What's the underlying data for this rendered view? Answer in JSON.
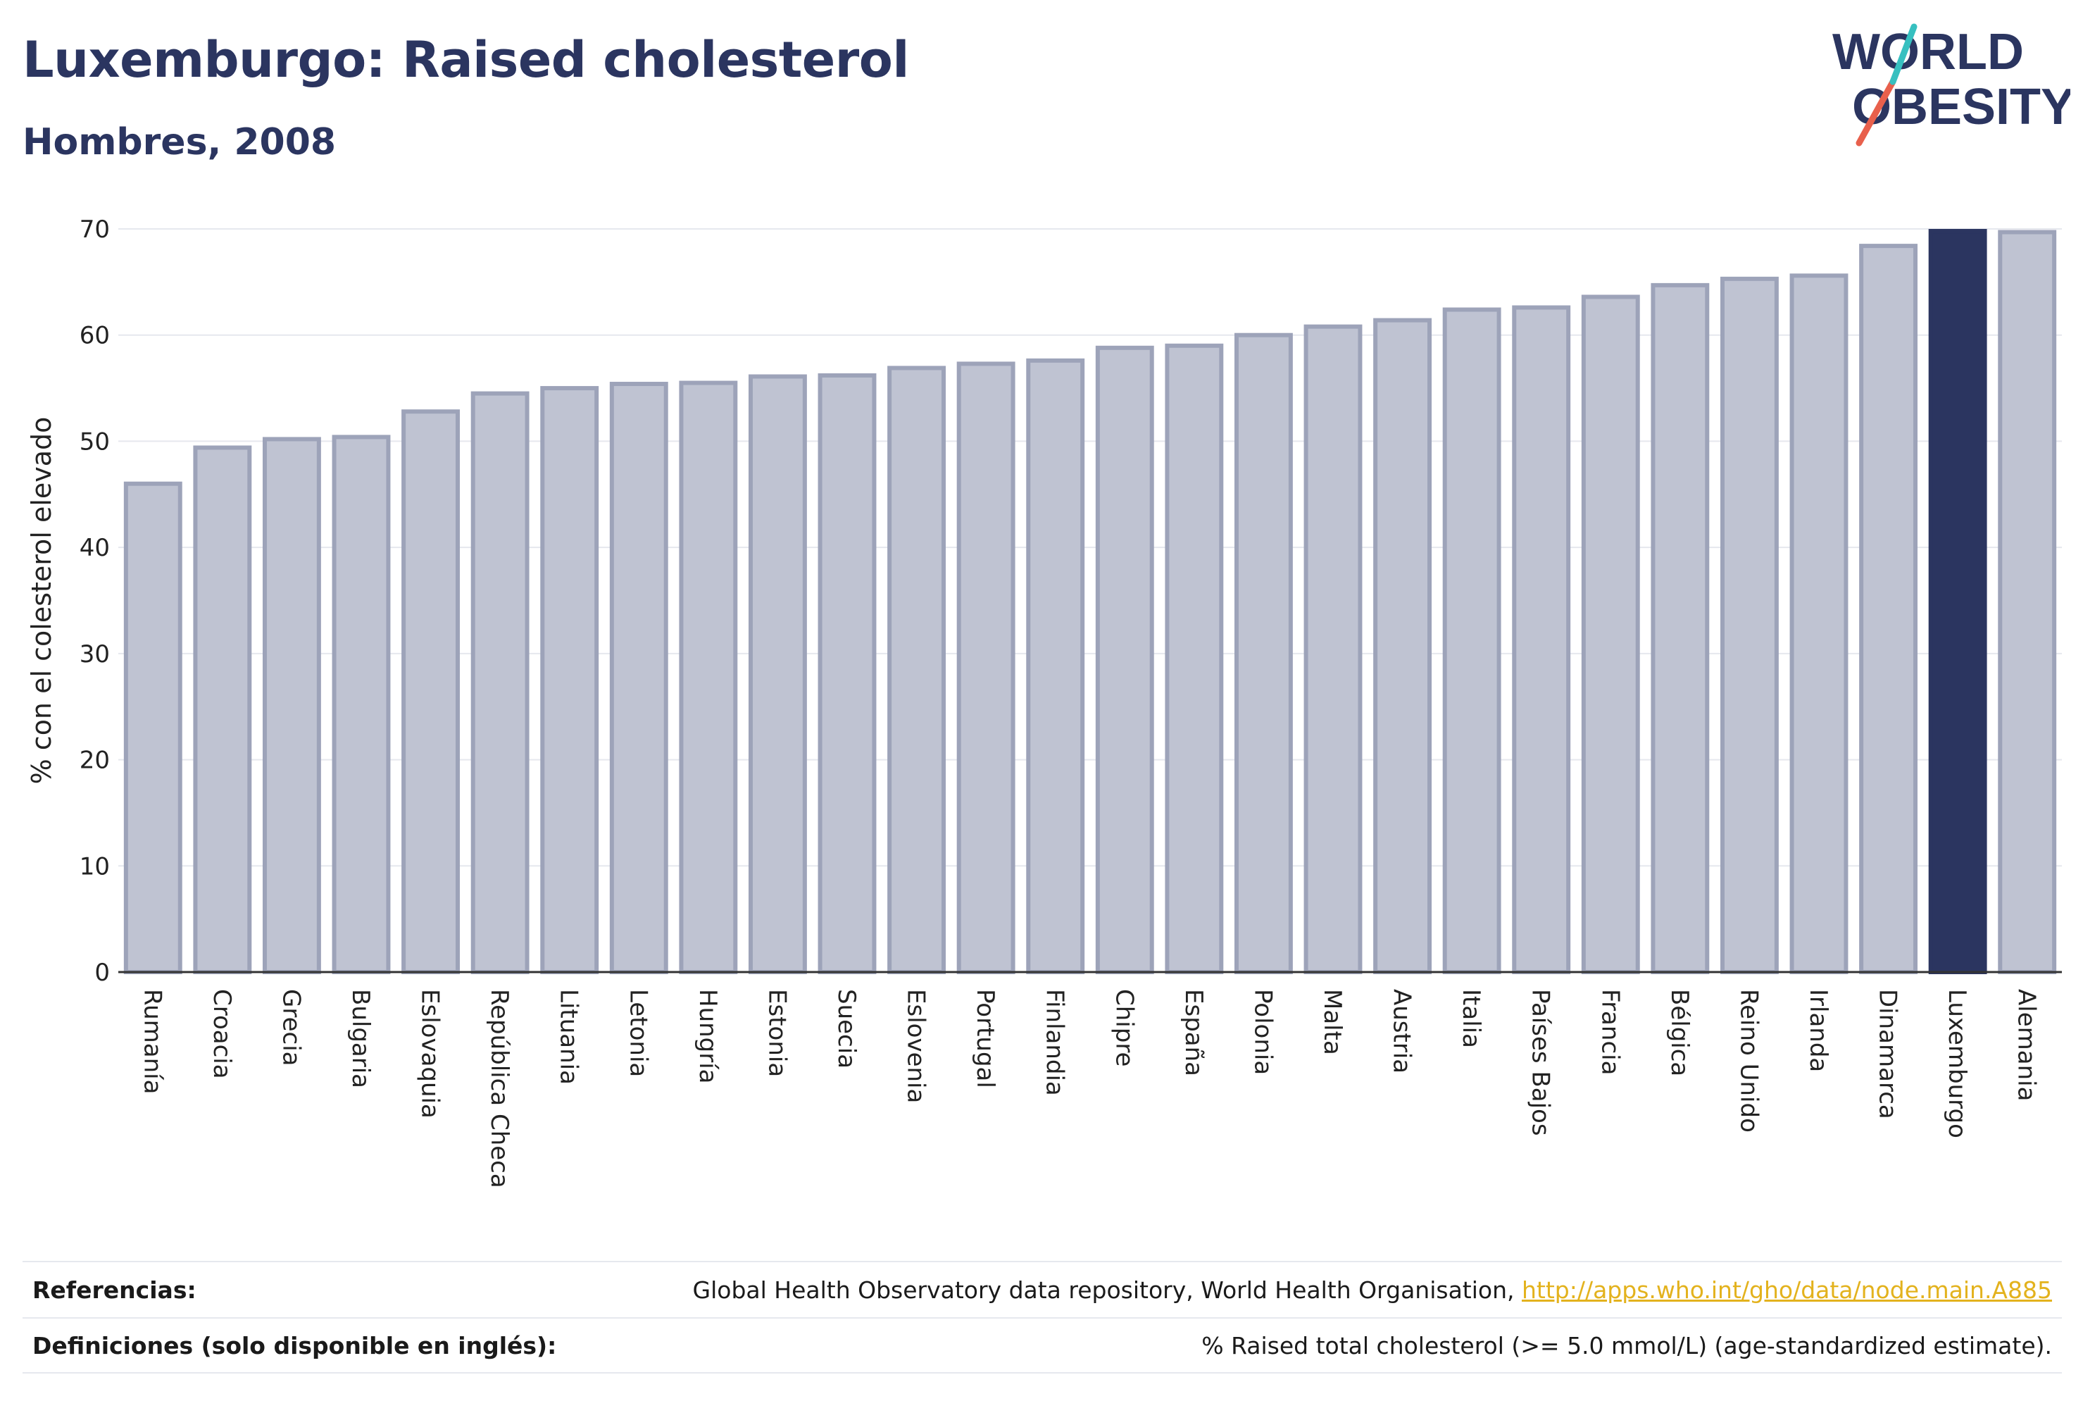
{
  "title": "Luxemburgo: Raised cholesterol",
  "subtitle": "Hombres, 2008",
  "logo": {
    "line1": "WORLD",
    "line2": "OBESITY",
    "accent_color": "#e8604c",
    "accent_color2": "#37c0c0"
  },
  "colors": {
    "bar": "#bfc3d2",
    "bar_stroke": "#9da3b9",
    "highlight": "#2b3560",
    "grid": "#e6e8ee",
    "axis": "#333333"
  },
  "chart_data": {
    "type": "bar",
    "ylabel": "% con el colesterol elevado",
    "ylim": [
      0,
      70
    ],
    "yticks": [
      0,
      10,
      20,
      30,
      40,
      50,
      60,
      70
    ],
    "grid": true,
    "highlight": "Luxemburgo",
    "categories": [
      "Rumanía",
      "Croacia",
      "Grecia",
      "Bulgaria",
      "Eslovaquia",
      "República Checa",
      "Lituania",
      "Letonia",
      "Hungría",
      "Estonia",
      "Suecia",
      "Eslovenia",
      "Portugal",
      "Finlandia",
      "Chipre",
      "España",
      "Polonia",
      "Malta",
      "Austria",
      "Italia",
      "Países Bajos",
      "Francia",
      "Bélgica",
      "Reino Unido",
      "Irlanda",
      "Dinamarca",
      "Luxemburgo",
      "Alemania"
    ],
    "values": [
      46.0,
      49.4,
      50.2,
      50.4,
      52.8,
      54.5,
      55.0,
      55.4,
      55.5,
      56.1,
      56.2,
      56.9,
      57.3,
      57.6,
      58.8,
      59.0,
      60.0,
      60.8,
      61.4,
      62.4,
      62.6,
      63.6,
      64.7,
      65.3,
      65.6,
      68.4,
      69.8,
      69.7
    ]
  },
  "footer": {
    "references_label": "Referencias:",
    "references_text": "Global Health Observatory data repository, World Health Organisation, ",
    "references_link": "http://apps.who.int/gho/data/node.main.A885",
    "definitions_label": "Definiciones (solo disponible en inglés):",
    "definitions_text": "% Raised total cholesterol (>= 5.0 mmol/L) (age-standardized estimate)."
  }
}
